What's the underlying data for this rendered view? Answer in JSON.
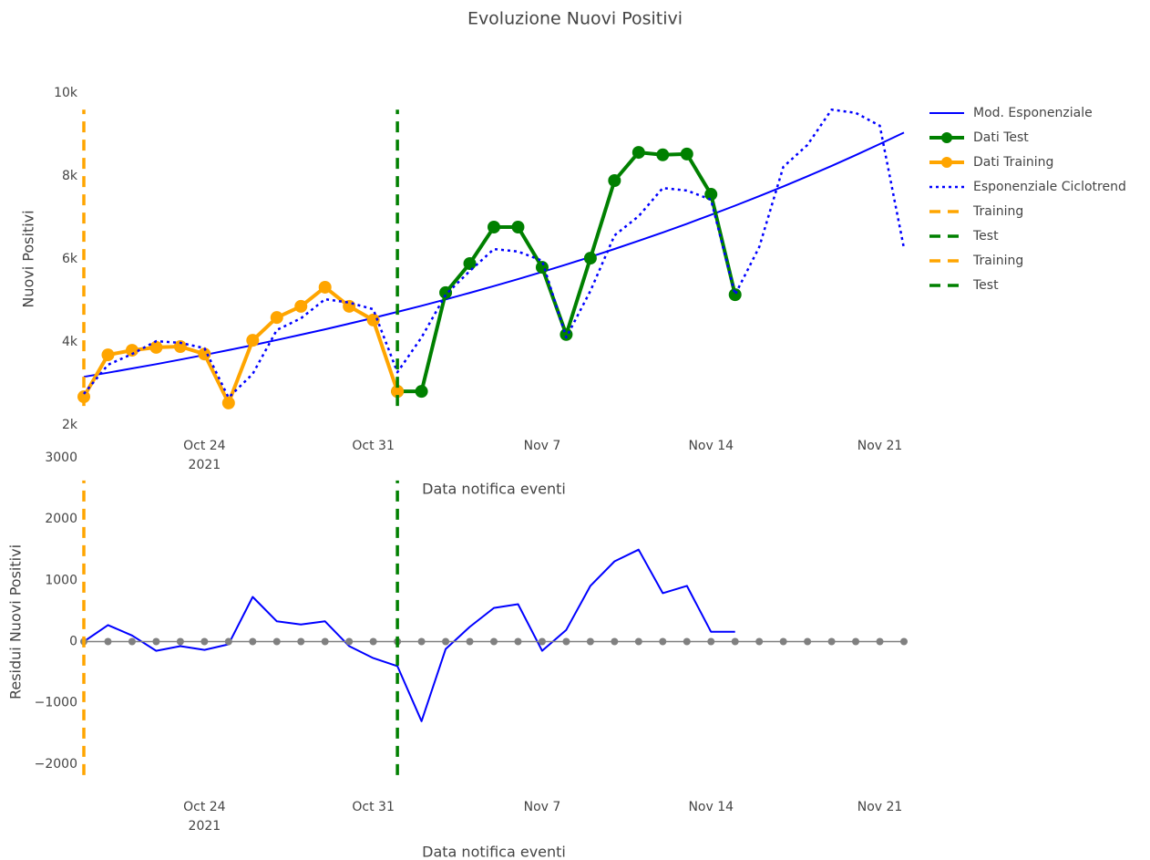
{
  "chart_data": [
    {
      "type": "line",
      "title": "Evoluzione Nuovi Positivi",
      "x_label": "Data notifica eventi",
      "y_label": "Nuovi Positivi",
      "x": [
        "2021-10-19",
        "2021-10-20",
        "2021-10-21",
        "2021-10-22",
        "2021-10-23",
        "2021-10-24",
        "2021-10-25",
        "2021-10-26",
        "2021-10-27",
        "2021-10-28",
        "2021-10-29",
        "2021-10-30",
        "2021-10-31",
        "2021-11-01",
        "2021-11-02",
        "2021-11-03",
        "2021-11-04",
        "2021-11-05",
        "2021-11-06",
        "2021-11-07",
        "2021-11-08",
        "2021-11-09",
        "2021-11-10",
        "2021-11-11",
        "2021-11-12",
        "2021-11-13",
        "2021-11-14",
        "2021-11-15",
        "2021-11-16",
        "2021-11-17",
        "2021-11-18",
        "2021-11-19",
        "2021-11-20",
        "2021-11-21",
        "2021-11-22"
      ],
      "xlim": [
        "2021-10-19",
        "2021-11-22"
      ],
      "xticks": [
        {
          "value": "2021-10-24",
          "label": "Oct 24"
        },
        {
          "value": "2021-10-31",
          "label": "Oct 31"
        },
        {
          "value": "2021-11-07",
          "label": "Nov 7"
        },
        {
          "value": "2021-11-14",
          "label": "Nov 14"
        },
        {
          "value": "2021-11-21",
          "label": "Nov 21"
        }
      ],
      "x_year_label": "2021",
      "ylim": [
        2000,
        10000
      ],
      "yticks": [
        {
          "value": 2000,
          "label": "2k"
        },
        {
          "value": 4000,
          "label": "4k"
        },
        {
          "value": 6000,
          "label": "6k"
        },
        {
          "value": 8000,
          "label": "8k"
        },
        {
          "value": 10000,
          "label": "10k"
        }
      ],
      "legend": "right",
      "series": [
        {
          "name": "Mod. Esponenziale",
          "color": "#0000ff",
          "dash": "solid",
          "width": 2,
          "markers": false,
          "values": [
            3160,
            3259,
            3362,
            3467,
            3576,
            3689,
            3805,
            3924,
            4048,
            4175,
            4306,
            4441,
            4581,
            4725,
            4873,
            5026,
            5184,
            5347,
            5515,
            5688,
            5867,
            6051,
            6241,
            6437,
            6640,
            6848,
            7063,
            7285,
            7514,
            7750,
            7994,
            8245,
            8504,
            8771,
            9047
          ]
        },
        {
          "name": "Dati Test",
          "color": "#008000",
          "dash": "solid",
          "width": 4,
          "markers": true,
          "values": [
            null,
            null,
            null,
            null,
            null,
            null,
            null,
            null,
            null,
            null,
            null,
            null,
            null,
            2810,
            2810,
            5190,
            5890,
            6770,
            6770,
            5800,
            4180,
            6020,
            7890,
            8570,
            8510,
            8530,
            7560,
            5140,
            null,
            null,
            null,
            null,
            null,
            null,
            null
          ]
        },
        {
          "name": "Dati Training",
          "color": "#ffa500",
          "dash": "solid",
          "width": 4,
          "markers": true,
          "values": [
            2680,
            3690,
            3800,
            3870,
            3890,
            3710,
            2530,
            4040,
            4590,
            4860,
            5320,
            4860,
            4530,
            2810,
            null,
            null,
            null,
            null,
            null,
            null,
            null,
            null,
            null,
            null,
            null,
            null,
            null,
            null,
            null,
            null,
            null,
            null,
            null,
            null,
            null
          ]
        },
        {
          "name": "Esponenziale Ciclotrend",
          "color": "#0000ff",
          "dash": "dot",
          "width": 2.5,
          "markers": false,
          "values": [
            2750,
            3450,
            3710,
            4020,
            3980,
            3850,
            2660,
            3230,
            4290,
            4570,
            5030,
            4950,
            4790,
            3270,
            4110,
            5140,
            5710,
            6240,
            6180,
            5960,
            4110,
            5230,
            6570,
            7030,
            7710,
            7650,
            7430,
            5140,
            6290,
            8220,
            8750,
            9600,
            9520,
            9210,
            6260
          ]
        }
      ],
      "vlines": [
        {
          "name": "Training",
          "color": "#ffa500",
          "x": "2021-10-19",
          "y_range": [
            2460,
            9600
          ]
        },
        {
          "name": "Test",
          "color": "#008000",
          "x": "2021-11-01",
          "y_range": [
            2460,
            9600
          ]
        }
      ]
    },
    {
      "type": "line",
      "x_label": "Data notifica eventi",
      "y_label": "Residui Nuovi Positivi",
      "x": [
        "2021-10-19",
        "2021-10-20",
        "2021-10-21",
        "2021-10-22",
        "2021-10-23",
        "2021-10-24",
        "2021-10-25",
        "2021-10-26",
        "2021-10-27",
        "2021-10-28",
        "2021-10-29",
        "2021-10-30",
        "2021-10-31",
        "2021-11-01",
        "2021-11-02",
        "2021-11-03",
        "2021-11-04",
        "2021-11-05",
        "2021-11-06",
        "2021-11-07",
        "2021-11-08",
        "2021-11-09",
        "2021-11-10",
        "2021-11-11",
        "2021-11-12",
        "2021-11-13",
        "2021-11-14",
        "2021-11-15",
        "2021-11-16",
        "2021-11-17",
        "2021-11-18",
        "2021-11-19",
        "2021-11-20",
        "2021-11-21",
        "2021-11-22"
      ],
      "xlim": [
        "2021-10-19",
        "2021-11-22"
      ],
      "xticks": [
        {
          "value": "2021-10-24",
          "label": "Oct 24"
        },
        {
          "value": "2021-10-31",
          "label": "Oct 31"
        },
        {
          "value": "2021-11-07",
          "label": "Nov 7"
        },
        {
          "value": "2021-11-14",
          "label": "Nov 14"
        },
        {
          "value": "2021-11-21",
          "label": "Nov 21"
        }
      ],
      "x_year_label": "2021",
      "ylim": [
        -2360,
        3000
      ],
      "yticks": [
        {
          "value": -2000,
          "label": "−2000"
        },
        {
          "value": -1000,
          "label": "−1000"
        },
        0,
        1000,
        2000,
        3000
      ],
      "series": [
        {
          "color": "#0000ff",
          "dash": "solid",
          "width": 2,
          "markers": false,
          "values": [
            0,
            270,
            100,
            -150,
            -75,
            -135,
            -45,
            730,
            330,
            280,
            330,
            -75,
            -270,
            -400,
            -1300,
            -120,
            240,
            550,
            610,
            -150,
            190,
            910,
            1310,
            1500,
            790,
            910,
            160,
            160,
            null,
            null,
            null,
            null,
            null,
            null,
            null
          ]
        },
        {
          "color": "#808080",
          "dash": "solid",
          "width": 1.5,
          "markers": true,
          "marker_size": 4,
          "values": [
            0,
            0,
            0,
            0,
            0,
            0,
            0,
            0,
            0,
            0,
            0,
            0,
            0,
            0,
            0,
            0,
            0,
            0,
            0,
            0,
            0,
            0,
            0,
            0,
            0,
            0,
            0,
            0,
            0,
            0,
            0,
            0,
            0,
            0,
            0
          ]
        }
      ],
      "vlines": [
        {
          "name": "Training",
          "color": "#ffa500",
          "x": "2021-10-19",
          "y_range": [
            -2180,
            2630
          ]
        },
        {
          "name": "Test",
          "color": "#008000",
          "x": "2021-11-01",
          "y_range": [
            -2180,
            2630
          ]
        }
      ]
    }
  ]
}
